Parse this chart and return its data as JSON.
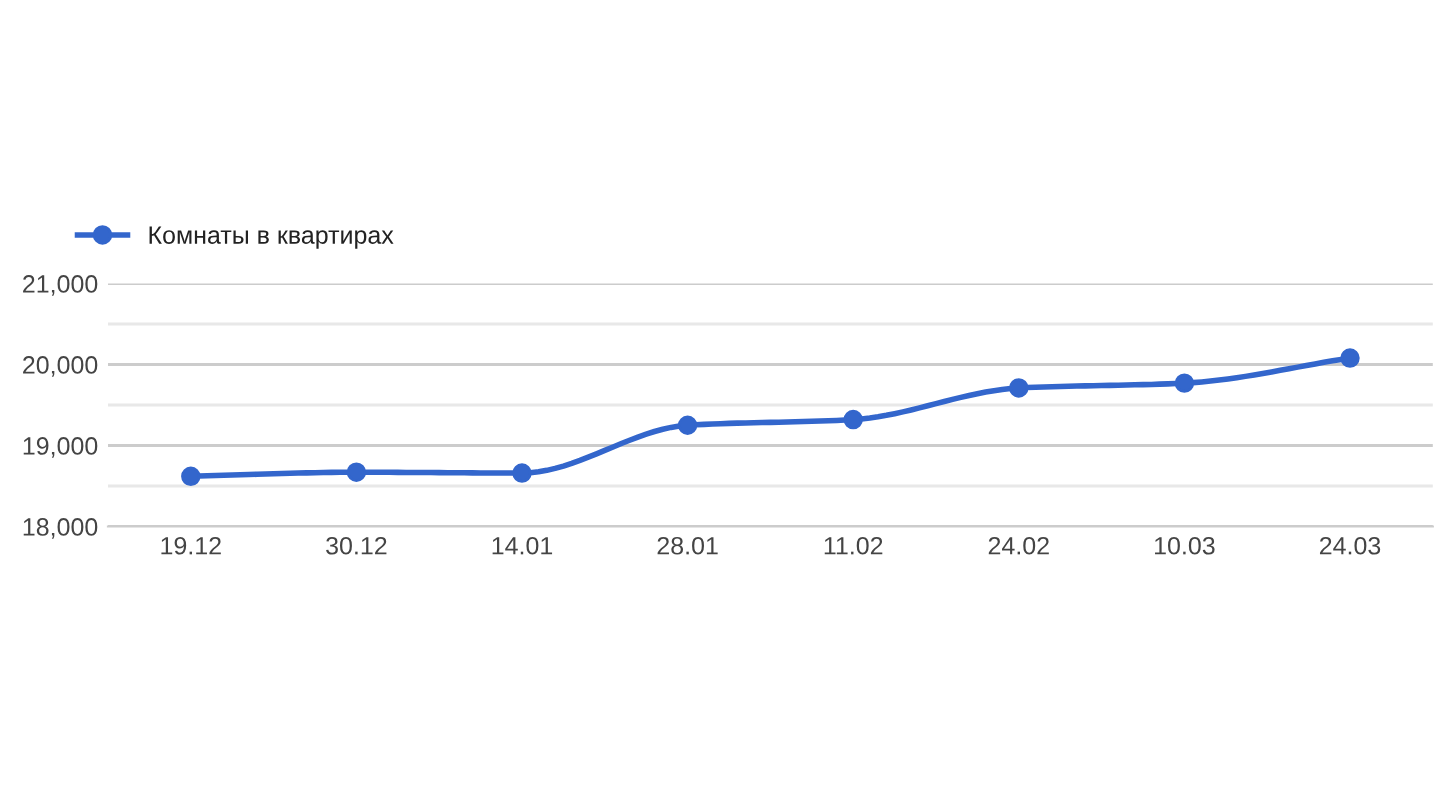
{
  "chart_data": {
    "type": "line",
    "categories": [
      "19.12",
      "30.12",
      "14.01",
      "28.01",
      "11.02",
      "24.02",
      "10.03",
      "24.03"
    ],
    "series": [
      {
        "name": "Комнаты в квартирах",
        "color": "#3366cc",
        "values": [
          18620,
          18670,
          18660,
          19250,
          19320,
          19710,
          19770,
          20080
        ]
      }
    ],
    "ylim": [
      18000,
      21000
    ],
    "yticks": [
      {
        "value": 18000,
        "label": "18,000"
      },
      {
        "value": 18500,
        "label": null
      },
      {
        "value": 19000,
        "label": "19,000"
      },
      {
        "value": 19500,
        "label": null
      },
      {
        "value": 20000,
        "label": "20,000"
      },
      {
        "value": 20500,
        "label": null
      },
      {
        "value": 21000,
        "label": "21,000"
      }
    ],
    "grid": "y",
    "legend": "top left",
    "marker": "circle",
    "line_style": "solid"
  }
}
